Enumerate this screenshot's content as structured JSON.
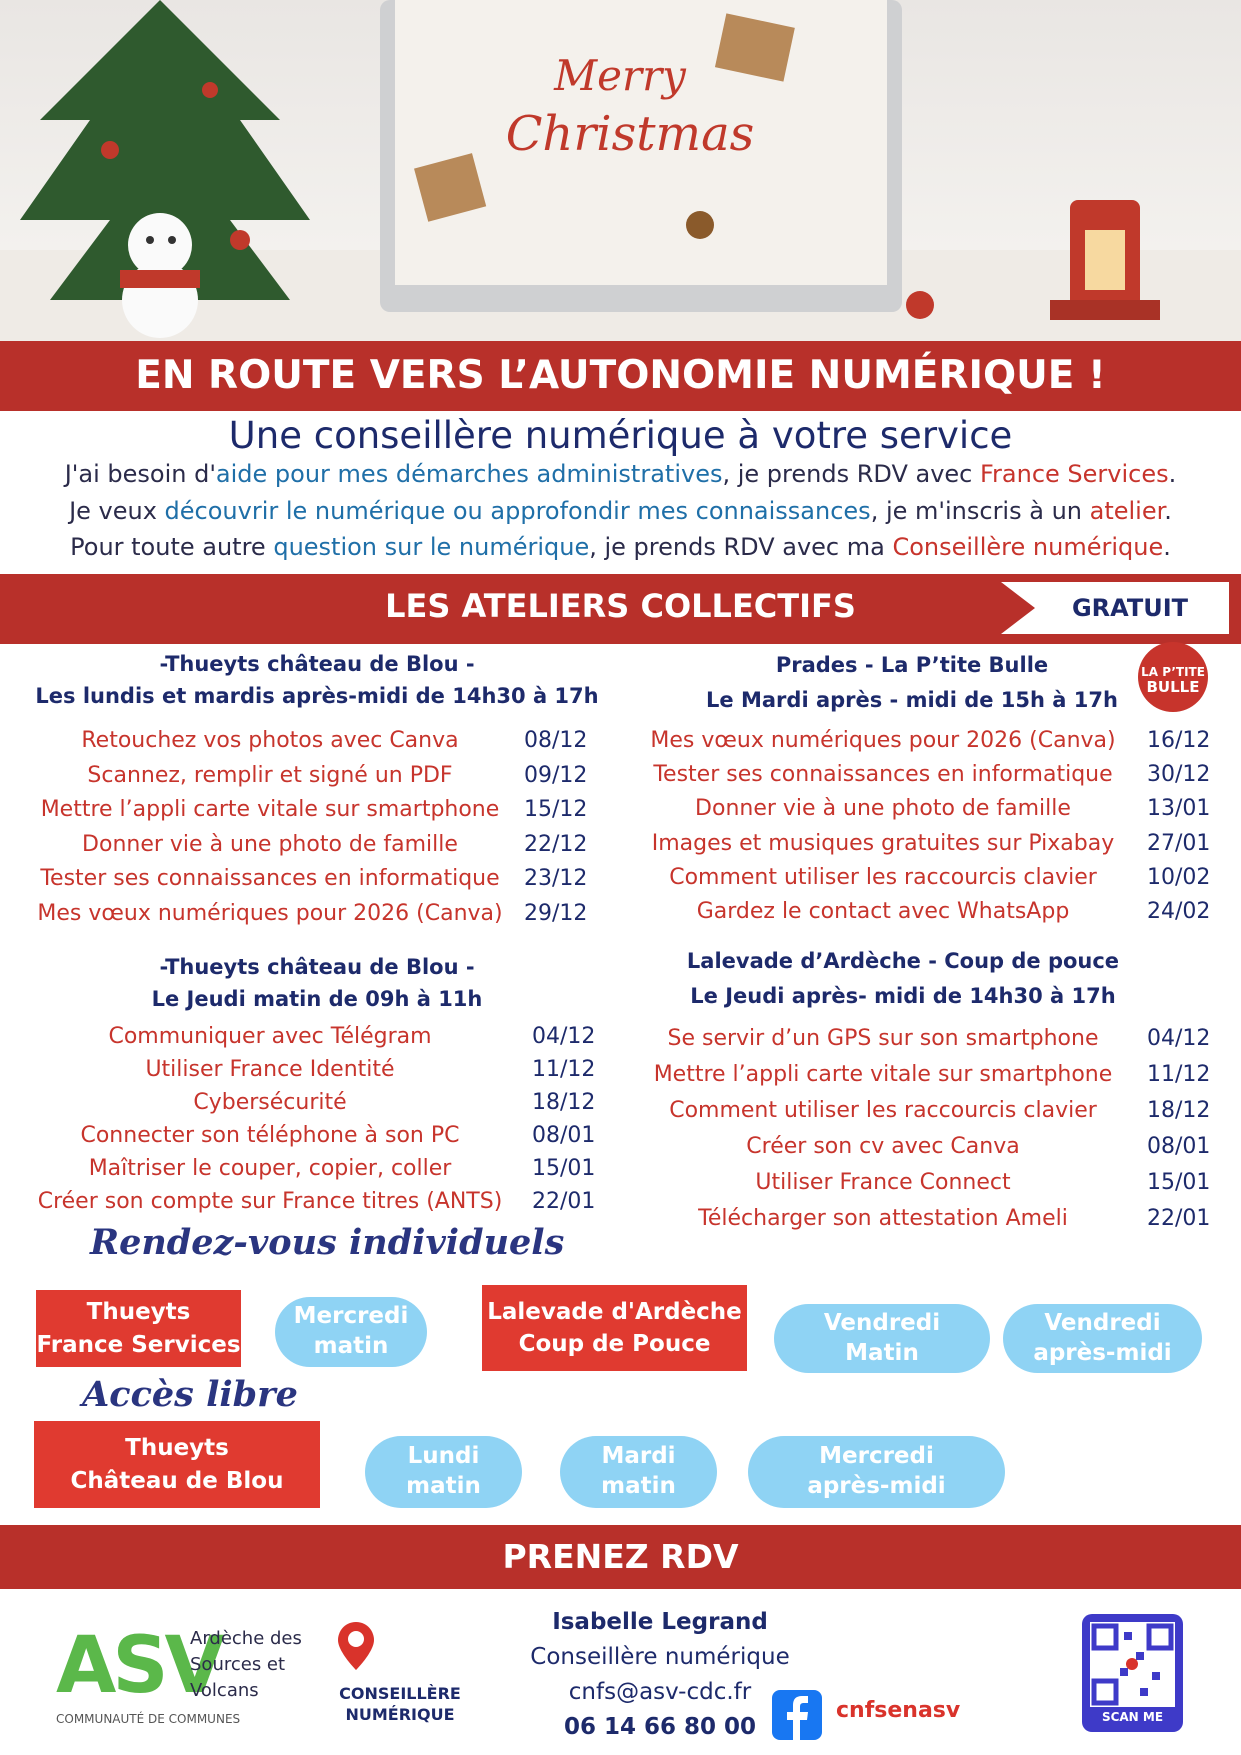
{
  "hero": {
    "greeting": [
      "Merry",
      "Christmas"
    ]
  },
  "banner": {
    "title": "EN ROUTE VERS L’AUTONOMIE NUMÉRIQUE !"
  },
  "intro": {
    "subtitle": "Une conseillère numérique à votre service",
    "lines": [
      [
        {
          "text": "J'ai besoin d'",
          "tone": "dark"
        },
        {
          "text": "aide pour mes démarches administratives",
          "tone": "blue"
        },
        {
          "text": ", je prends RDV avec ",
          "tone": "dark"
        },
        {
          "text": "France Services",
          "tone": "red"
        },
        {
          "text": ".",
          "tone": "dark"
        }
      ],
      [
        {
          "text": "Je veux ",
          "tone": "dark"
        },
        {
          "text": "découvrir le numérique ou approfondir mes connaissances",
          "tone": "blue"
        },
        {
          "text": ", je m'inscris à un ",
          "tone": "dark"
        },
        {
          "text": "atelier",
          "tone": "red"
        },
        {
          "text": ".",
          "tone": "dark"
        }
      ],
      [
        {
          "text": "Pour toute autre ",
          "tone": "dark"
        },
        {
          "text": "question sur le numérique",
          "tone": "blue"
        },
        {
          "text": ", je prends RDV avec ma ",
          "tone": "dark"
        },
        {
          "text": "Conseillère numérique",
          "tone": "red"
        },
        {
          "text": ".",
          "tone": "dark"
        }
      ]
    ]
  },
  "workshops": {
    "title": "LES ATELIERS COLLECTIFS",
    "badge": "GRATUIT",
    "bulle_logo": [
      "LA P’TITE",
      "BULLE"
    ],
    "blocks": [
      {
        "place": "-Thueyts château de Blou -",
        "schedule": "Les lundis et mardis après-midi de 14h30 à 17h",
        "items": [
          [
            "Retouchez vos photos avec Canva",
            "08/12"
          ],
          [
            "Scannez, remplir et signé un PDF",
            "09/12"
          ],
          [
            "Mettre l’appli carte vitale sur smartphone",
            "15/12"
          ],
          [
            "Donner vie à une photo de famille",
            "22/12"
          ],
          [
            "Tester ses connaissances en informatique",
            "23/12"
          ],
          [
            "Mes vœux numériques pour 2026 (Canva)",
            "29/12"
          ]
        ]
      },
      {
        "place": "Prades - La P’tite Bulle",
        "schedule": "Le Mardi après - midi de 15h à 17h",
        "items": [
          [
            "Mes vœux numériques pour 2026 (Canva)",
            "16/12"
          ],
          [
            "Tester ses connaissances en informatique",
            "30/12"
          ],
          [
            "Donner vie à une photo de famille",
            "13/01"
          ],
          [
            "Images et musiques gratuites sur Pixabay",
            "27/01"
          ],
          [
            "Comment utiliser les raccourcis clavier",
            "10/02"
          ],
          [
            "Gardez le contact avec WhatsApp",
            "24/02"
          ]
        ]
      },
      {
        "place": "-Thueyts château de Blou -",
        "schedule": "Le Jeudi matin de 09h à 11h",
        "items": [
          [
            "Communiquer avec Télégram",
            "04/12"
          ],
          [
            "Utiliser France Identité",
            "11/12"
          ],
          [
            "Cybersécurité",
            "18/12"
          ],
          [
            "Connecter son téléphone à son PC",
            "08/01"
          ],
          [
            "Maîtriser le couper, copier, coller",
            "15/01"
          ],
          [
            "Créer son compte sur France titres (ANTS)",
            "22/01"
          ]
        ]
      },
      {
        "place": "Lalevade d’Ardèche - Coup de pouce",
        "schedule": "Le Jeudi après- midi de 14h30 à 17h",
        "items": [
          [
            "Se servir d’un GPS sur son smartphone",
            "04/12"
          ],
          [
            "Mettre l’appli carte vitale sur smartphone",
            "11/12"
          ],
          [
            "Comment utiliser les raccourcis clavier",
            "18/12"
          ],
          [
            "Créer son cv avec Canva",
            "08/01"
          ],
          [
            "Utiliser France Connect",
            "15/01"
          ],
          [
            "Télécharger son attestation Ameli",
            "22/01"
          ]
        ]
      }
    ]
  },
  "appointments": {
    "title": "Rendez-vous individuels",
    "places": [
      {
        "name": [
          "Thueyts",
          "France Services"
        ],
        "slots": [
          [
            "Mercredi",
            "matin"
          ]
        ]
      },
      {
        "name": [
          "Lalevade d'Ardèche",
          "Coup de Pouce"
        ],
        "slots": [
          [
            "Vendredi",
            "Matin"
          ],
          [
            "Vendredi",
            "après-midi"
          ]
        ]
      }
    ]
  },
  "open_access": {
    "title": "Accès libre",
    "places": [
      {
        "name": [
          "Thueyts",
          "Château de Blou"
        ],
        "slots": [
          [
            "Lundi",
            "matin"
          ],
          [
            "Mardi",
            "matin"
          ],
          [
            "Mercredi",
            "après-midi"
          ]
        ]
      }
    ]
  },
  "cta": {
    "title": "PRENEZ RDV"
  },
  "footer": {
    "asv_mark": "ASV",
    "asv_name": [
      "Ardèche des",
      "Sources et",
      "Volcans"
    ],
    "asv_sub": "COMMUNAUTÉ DE COMMUNES",
    "cn_logo": [
      "CONSEILLÈRE",
      "NUMÉRIQUE"
    ],
    "contact": {
      "name": "Isabelle Legrand",
      "role": "Conseillère numérique",
      "email": "cnfs@asv-cdc.fr",
      "phone": "06 14 66 80 00"
    },
    "facebook": "cnfsenasv",
    "qr_label": "SCAN ME"
  }
}
